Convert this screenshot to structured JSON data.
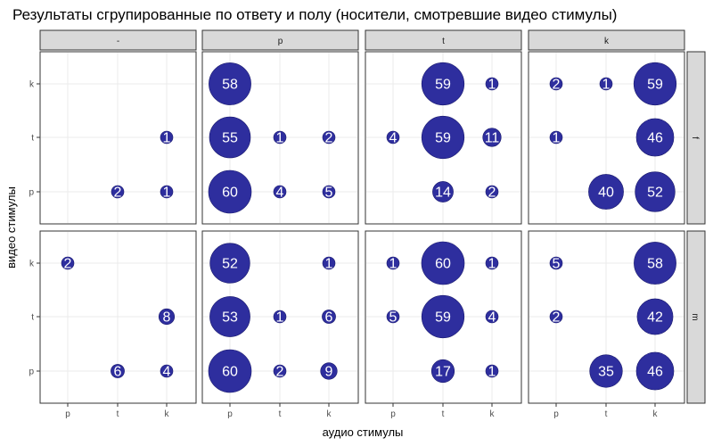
{
  "chart_data": {
    "type": "bubble-facet",
    "title": "Результаты сгрупированные по ответу и полу (носители, смотревшие видео стимулы)",
    "xlabel": "аудио стимулы",
    "ylabel": "видео стимулы",
    "x_categories": [
      "p",
      "t",
      "k"
    ],
    "y_categories": [
      "p",
      "t",
      "k"
    ],
    "col_facets": [
      "-",
      "p",
      "t",
      "k"
    ],
    "row_facets": [
      "f",
      "m"
    ],
    "bubble_color": "#2e2e9e",
    "grid": true,
    "points": [
      {
        "row": "f",
        "col": "-",
        "x": "k",
        "y": "t",
        "n": 1
      },
      {
        "row": "f",
        "col": "-",
        "x": "t",
        "y": "p",
        "n": 2
      },
      {
        "row": "f",
        "col": "-",
        "x": "k",
        "y": "p",
        "n": 1
      },
      {
        "row": "f",
        "col": "p",
        "x": "p",
        "y": "k",
        "n": 58
      },
      {
        "row": "f",
        "col": "p",
        "x": "p",
        "y": "t",
        "n": 55
      },
      {
        "row": "f",
        "col": "p",
        "x": "t",
        "y": "t",
        "n": 1
      },
      {
        "row": "f",
        "col": "p",
        "x": "k",
        "y": "t",
        "n": 2
      },
      {
        "row": "f",
        "col": "p",
        "x": "p",
        "y": "p",
        "n": 60
      },
      {
        "row": "f",
        "col": "p",
        "x": "t",
        "y": "p",
        "n": 4
      },
      {
        "row": "f",
        "col": "p",
        "x": "k",
        "y": "p",
        "n": 5
      },
      {
        "row": "f",
        "col": "t",
        "x": "t",
        "y": "k",
        "n": 59
      },
      {
        "row": "f",
        "col": "t",
        "x": "k",
        "y": "k",
        "n": 1
      },
      {
        "row": "f",
        "col": "t",
        "x": "p",
        "y": "t",
        "n": 4
      },
      {
        "row": "f",
        "col": "t",
        "x": "t",
        "y": "t",
        "n": 59
      },
      {
        "row": "f",
        "col": "t",
        "x": "k",
        "y": "t",
        "n": 11
      },
      {
        "row": "f",
        "col": "t",
        "x": "t",
        "y": "p",
        "n": 14
      },
      {
        "row": "f",
        "col": "t",
        "x": "k",
        "y": "p",
        "n": 2
      },
      {
        "row": "f",
        "col": "k",
        "x": "p",
        "y": "k",
        "n": 2
      },
      {
        "row": "f",
        "col": "k",
        "x": "t",
        "y": "k",
        "n": 1
      },
      {
        "row": "f",
        "col": "k",
        "x": "k",
        "y": "k",
        "n": 59
      },
      {
        "row": "f",
        "col": "k",
        "x": "p",
        "y": "t",
        "n": 1
      },
      {
        "row": "f",
        "col": "k",
        "x": "k",
        "y": "t",
        "n": 46
      },
      {
        "row": "f",
        "col": "k",
        "x": "t",
        "y": "p",
        "n": 40
      },
      {
        "row": "f",
        "col": "k",
        "x": "k",
        "y": "p",
        "n": 52
      },
      {
        "row": "m",
        "col": "-",
        "x": "p",
        "y": "k",
        "n": 2
      },
      {
        "row": "m",
        "col": "-",
        "x": "k",
        "y": "t",
        "n": 8
      },
      {
        "row": "m",
        "col": "-",
        "x": "t",
        "y": "p",
        "n": 6
      },
      {
        "row": "m",
        "col": "-",
        "x": "k",
        "y": "p",
        "n": 4
      },
      {
        "row": "m",
        "col": "p",
        "x": "p",
        "y": "k",
        "n": 52
      },
      {
        "row": "m",
        "col": "p",
        "x": "k",
        "y": "k",
        "n": 1
      },
      {
        "row": "m",
        "col": "p",
        "x": "p",
        "y": "t",
        "n": 53
      },
      {
        "row": "m",
        "col": "p",
        "x": "t",
        "y": "t",
        "n": 1
      },
      {
        "row": "m",
        "col": "p",
        "x": "k",
        "y": "t",
        "n": 6
      },
      {
        "row": "m",
        "col": "p",
        "x": "p",
        "y": "p",
        "n": 60
      },
      {
        "row": "m",
        "col": "p",
        "x": "t",
        "y": "p",
        "n": 2
      },
      {
        "row": "m",
        "col": "p",
        "x": "k",
        "y": "p",
        "n": 9
      },
      {
        "row": "m",
        "col": "t",
        "x": "p",
        "y": "k",
        "n": 1
      },
      {
        "row": "m",
        "col": "t",
        "x": "t",
        "y": "k",
        "n": 60
      },
      {
        "row": "m",
        "col": "t",
        "x": "k",
        "y": "k",
        "n": 1
      },
      {
        "row": "m",
        "col": "t",
        "x": "p",
        "y": "t",
        "n": 5
      },
      {
        "row": "m",
        "col": "t",
        "x": "t",
        "y": "t",
        "n": 59
      },
      {
        "row": "m",
        "col": "t",
        "x": "k",
        "y": "t",
        "n": 4
      },
      {
        "row": "m",
        "col": "t",
        "x": "t",
        "y": "p",
        "n": 17
      },
      {
        "row": "m",
        "col": "t",
        "x": "k",
        "y": "p",
        "n": 1
      },
      {
        "row": "m",
        "col": "k",
        "x": "p",
        "y": "k",
        "n": 5
      },
      {
        "row": "m",
        "col": "k",
        "x": "k",
        "y": "k",
        "n": 58
      },
      {
        "row": "m",
        "col": "k",
        "x": "p",
        "y": "t",
        "n": 2
      },
      {
        "row": "m",
        "col": "k",
        "x": "k",
        "y": "t",
        "n": 42
      },
      {
        "row": "m",
        "col": "k",
        "x": "t",
        "y": "p",
        "n": 35
      },
      {
        "row": "m",
        "col": "k",
        "x": "k",
        "y": "p",
        "n": 46
      }
    ]
  }
}
